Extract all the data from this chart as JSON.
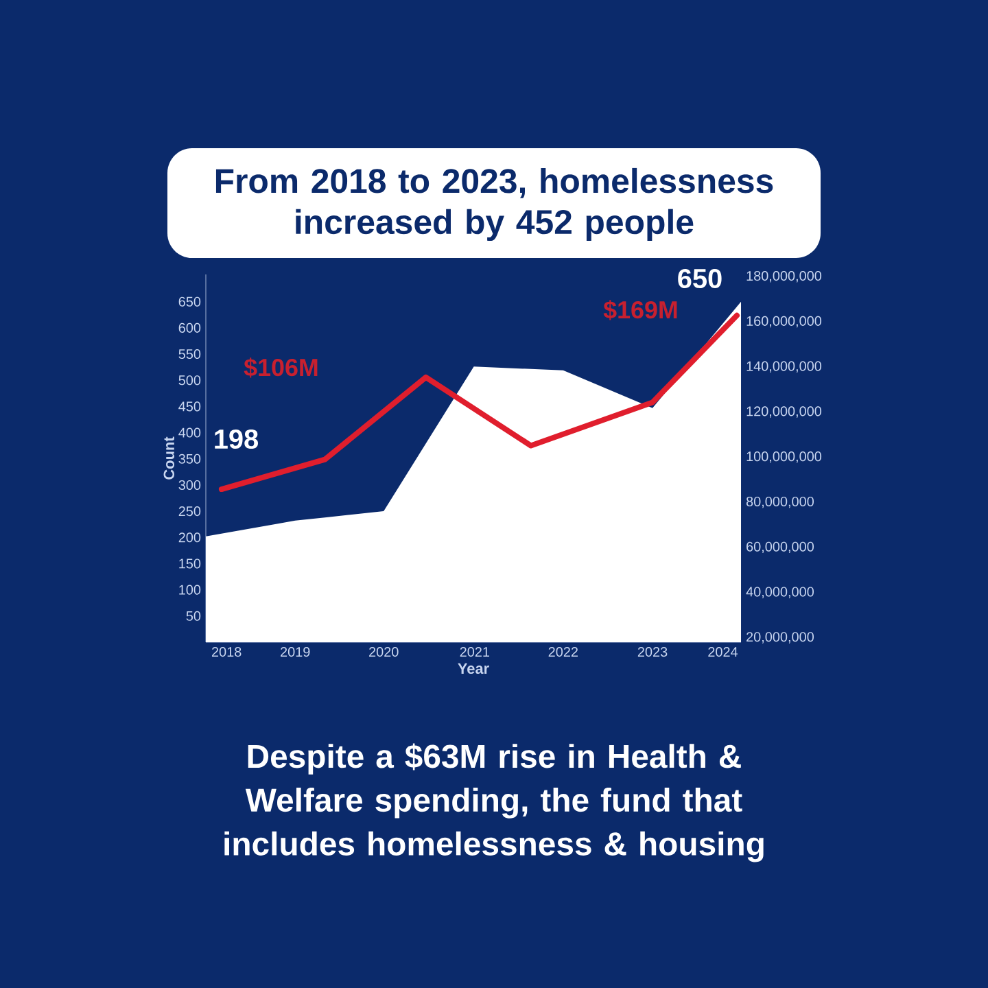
{
  "chart_data": {
    "type": "area",
    "title": "From 2018 to 2023, homelessness increased by 452 people",
    "xlabel": "Year",
    "ylabel": "Count",
    "xlim": [
      2017.75,
      2024.22
    ],
    "xticks": [
      {
        "value": 2018,
        "label": "2018"
      },
      {
        "value": 2018.83,
        "label": "2019"
      },
      {
        "value": 2019.9,
        "label": "2020"
      },
      {
        "value": 2021,
        "label": "2021"
      },
      {
        "value": 2022.07,
        "label": "2022"
      },
      {
        "value": 2023.15,
        "label": "2023"
      },
      {
        "value": 2024,
        "label": "2024"
      }
    ],
    "ylim": [
      0,
      702
    ],
    "yticks": [
      50,
      100,
      150,
      200,
      250,
      300,
      350,
      400,
      450,
      500,
      550,
      600,
      650
    ],
    "y2lim": [
      18000000,
      181000000
    ],
    "y2ticks": [
      {
        "value": 20000000,
        "label": "20,000,000"
      },
      {
        "value": 40000000,
        "label": "40,000,000"
      },
      {
        "value": 60000000,
        "label": "60,000,000"
      },
      {
        "value": 80000000,
        "label": "80,000,000"
      },
      {
        "value": 100000000,
        "label": "100,000,000"
      },
      {
        "value": 120000000,
        "label": "120,000,000"
      },
      {
        "value": 140000000,
        "label": "140,000,000"
      },
      {
        "value": 160000000,
        "label": "160,000,000"
      },
      {
        "value": 180000000,
        "label": "180,000,000"
      }
    ],
    "series": [
      {
        "color": "#ffffff",
        "x": [
          2017.75,
          2018.83,
          2019.19,
          2019.9,
          2020.99,
          2022.07,
          2023.15,
          2024.22
        ],
        "values": [
          202,
          232,
          238,
          250,
          526,
          519,
          447,
          650
        ]
      },
      {
        "type": "line",
        "axis": "y2",
        "color": "#e01e2d",
        "x": [
          2017.94,
          2019.19,
          2020.41,
          2021.68,
          2023.15,
          2024.17
        ],
        "values": [
          85800000,
          99000000,
          135400000,
          105100000,
          124300000,
          162800000
        ]
      }
    ],
    "annotations": [
      "$106M",
      "$169M",
      "198",
      "650",
      "Despite a $63M rise in Health & Welfare spending, the fund that includes homelessness & housing"
    ]
  }
}
